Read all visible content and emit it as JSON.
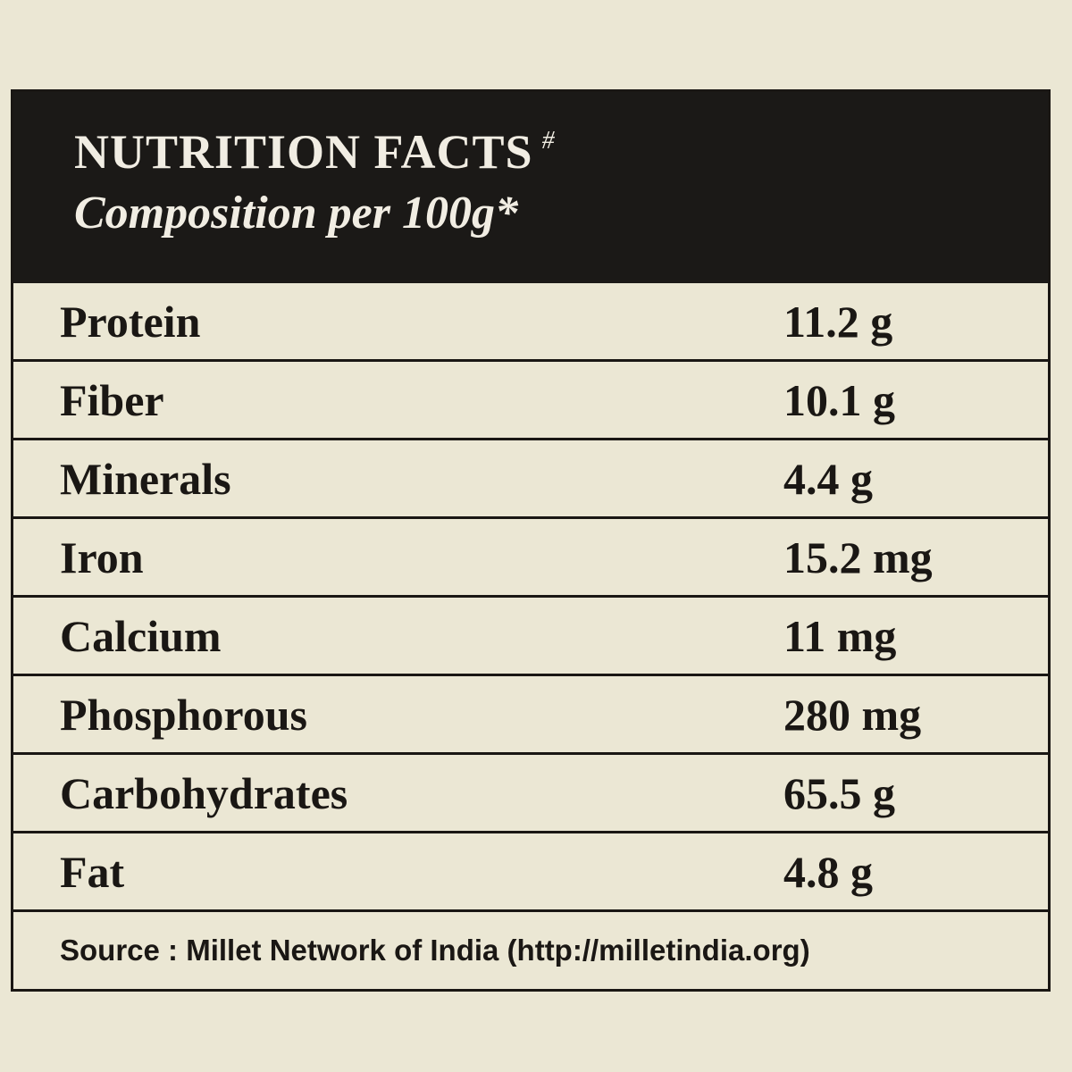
{
  "header": {
    "title": "NUTRITION FACTS",
    "title_mark": "#",
    "subtitle": "Composition per 100g*"
  },
  "table": {
    "rows": [
      [
        "Protein",
        "11.2 g"
      ],
      [
        "Fiber",
        "10.1 g"
      ],
      [
        "Minerals",
        "4.4 g"
      ],
      [
        "Iron",
        "15.2 mg"
      ],
      [
        "Calcium",
        "11 mg"
      ],
      [
        "Phosphorous",
        "280 mg"
      ],
      [
        "Carbohydrates",
        "65.5 g"
      ],
      [
        "Fat",
        "4.8 g"
      ]
    ]
  },
  "footer": {
    "source": "Source : Millet Network of India (http://milletindia.org)"
  }
}
